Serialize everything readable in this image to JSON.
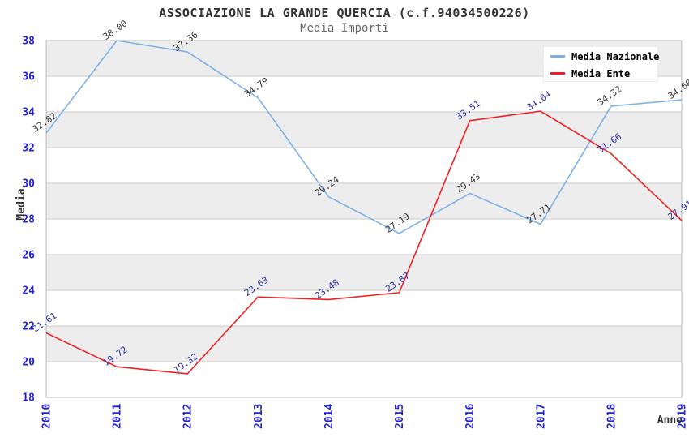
{
  "header": {
    "title": "ASSOCIAZIONE LA GRANDE QUERCIA (c.f.94034500226)",
    "subtitle": "Media Importi"
  },
  "legend": {
    "items": [
      {
        "label": "Media Nazionale",
        "color": "#7cb1e8"
      },
      {
        "label": "Media Ente",
        "color": "#ee2222"
      }
    ],
    "position": "top-right"
  },
  "chart_data": {
    "type": "line",
    "title": "ASSOCIAZIONE LA GRANDE QUERCIA (c.f.94034500226)",
    "subtitle": "Media Importi",
    "x": [
      "2010",
      "2011",
      "2012",
      "2013",
      "2014",
      "2015",
      "2016",
      "2017",
      "2018",
      "2019"
    ],
    "series": [
      {
        "name": "Media Nazionale",
        "color": "#7cb1e8",
        "label_color": "#333333",
        "values": [
          32.82,
          38.0,
          37.36,
          34.79,
          29.24,
          27.19,
          29.43,
          27.71,
          34.32,
          34.68
        ]
      },
      {
        "name": "Media Ente",
        "color": "#ee2222",
        "label_color": "#2e2ea2",
        "values": [
          21.61,
          19.72,
          19.32,
          23.63,
          23.48,
          23.87,
          33.51,
          34.04,
          31.66,
          27.91
        ]
      }
    ],
    "xlabel": "Anno",
    "ylabel": "Media",
    "ylim": [
      18,
      38
    ],
    "ytick_step": 2,
    "grid": true,
    "banded_background": true,
    "legend_position": "top-right"
  },
  "colors": {
    "tick_label": "#2222cc",
    "band_gray": "#ededed",
    "band_white": "#ffffff",
    "gridline": "#cccccc",
    "plot_border": "#b8b8b8",
    "axis_title": "#333333",
    "title": "#333333",
    "subtitle": "#666666",
    "legend_bg": "#ffffff"
  }
}
